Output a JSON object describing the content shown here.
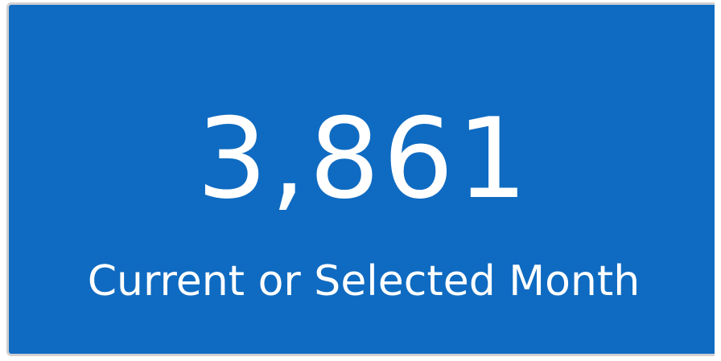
{
  "card": {
    "value": "3,861",
    "label": "Current or Selected Month"
  }
}
